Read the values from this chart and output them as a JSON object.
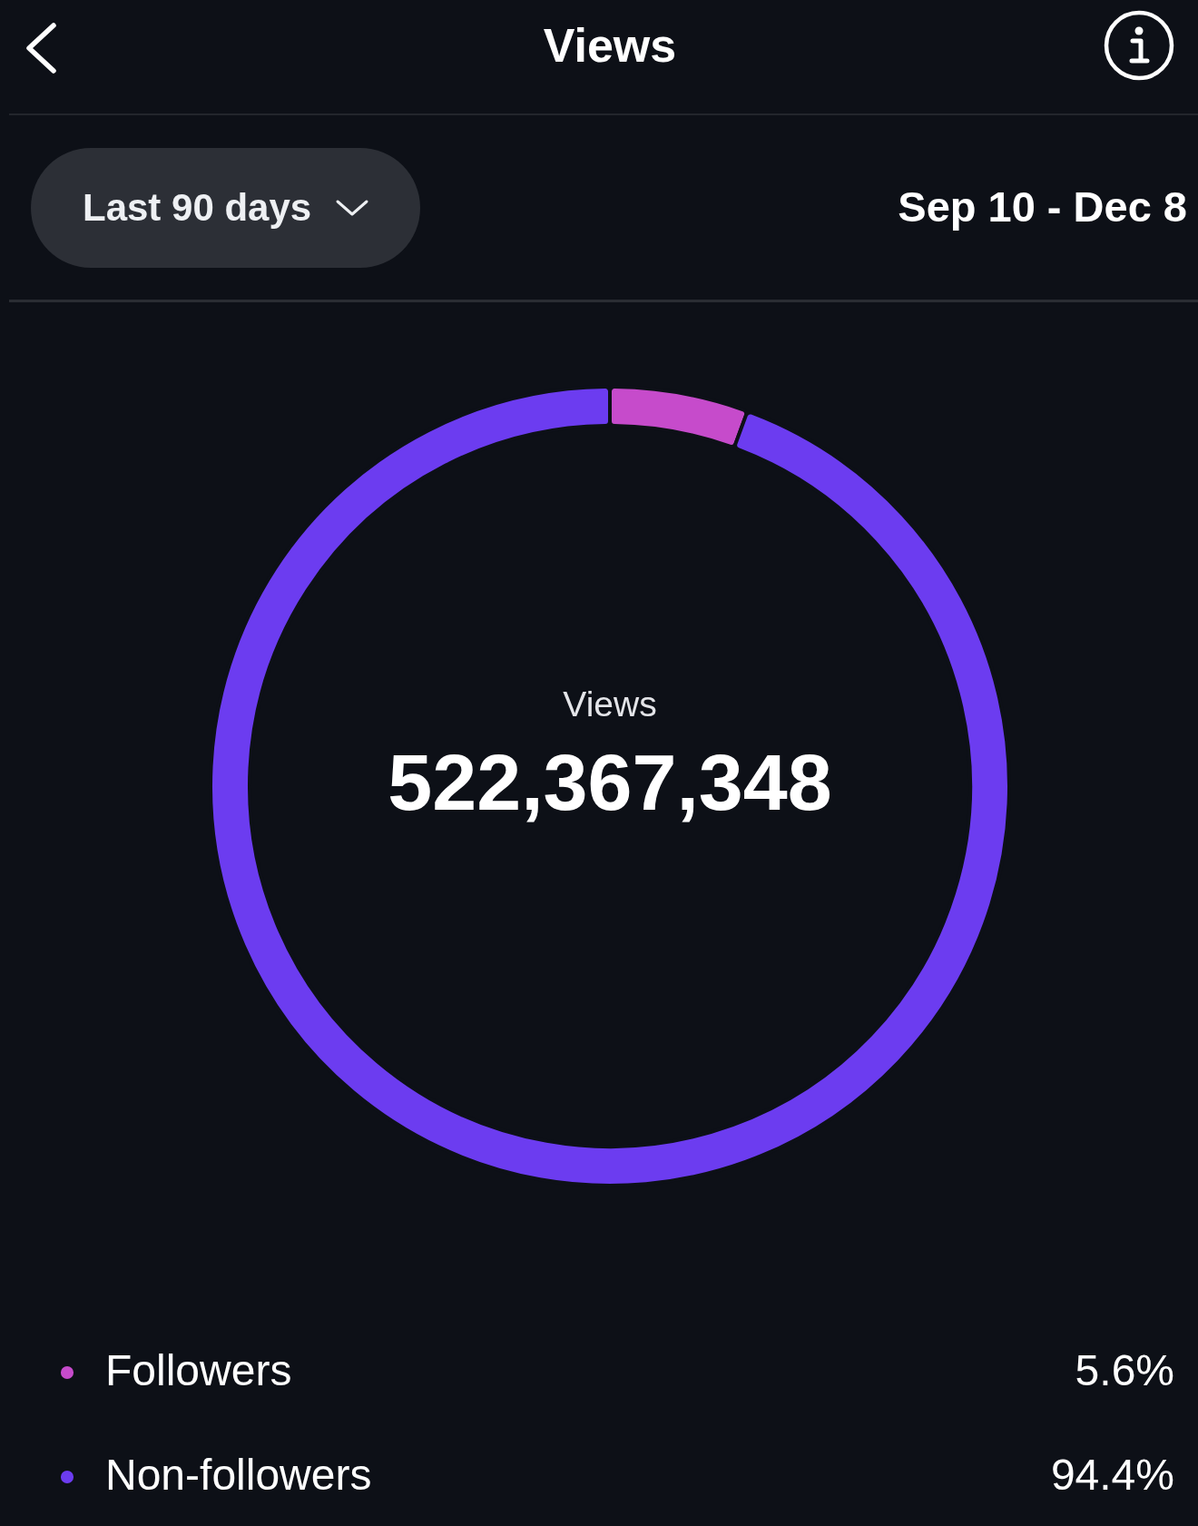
{
  "chart_data": {
    "type": "donut",
    "title": "Views",
    "subtitle": "Sep 10 - Dec 8",
    "categories": [
      "Followers",
      "Non-followers"
    ],
    "values": [
      5.6,
      94.4
    ],
    "colors": [
      "#c64bcb",
      "#6c3cf0"
    ],
    "value_labels": [
      "5.6%",
      "94.4%"
    ],
    "legend": "bottom left",
    "annotations": [
      "Last 90 days",
      "Views",
      "522,367,348"
    ]
  }
}
